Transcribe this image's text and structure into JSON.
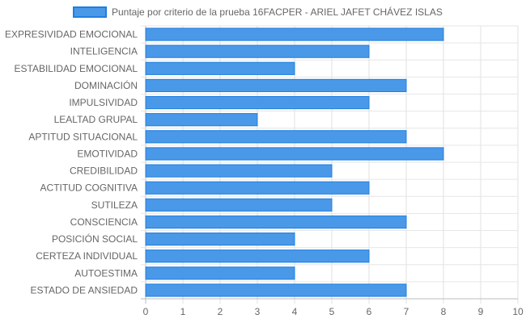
{
  "chart_data": {
    "type": "bar",
    "orientation": "horizontal",
    "categories": [
      "EXPRESIVIDAD EMOCIONAL",
      "INTELIGENCIA",
      "ESTABILIDAD EMOCIONAL",
      "DOMINACIÓN",
      "IMPULSIVIDAD",
      "LEALTAD GRUPAL",
      "APTITUD SITUACIONAL",
      "EMOTIVIDAD",
      "CREDIBILIDAD",
      "ACTITUD COGNITIVA",
      "SUTILEZA",
      "CONSCIENCIA",
      "POSICIÓN SOCIAL",
      "CERTEZA INDIVIDUAL",
      "AUTOESTIMA",
      "ESTADO DE ANSIEDAD"
    ],
    "series": [
      {
        "name": "Puntaje por criterio de la prueba 16FACPER - ARIEL JAFET CHÁVEZ ISLAS",
        "values": [
          8,
          6,
          4,
          7,
          6,
          3,
          7,
          8,
          5,
          6,
          5,
          7,
          4,
          6,
          4,
          7
        ],
        "color": "#4a98e8",
        "border_color": "#1e7fe0"
      }
    ],
    "xlim": [
      0,
      10
    ],
    "xticks": [
      "0",
      "1",
      "2",
      "3",
      "4",
      "5",
      "6",
      "7",
      "8",
      "9",
      "10"
    ],
    "grid": true,
    "legend_position": "top"
  }
}
